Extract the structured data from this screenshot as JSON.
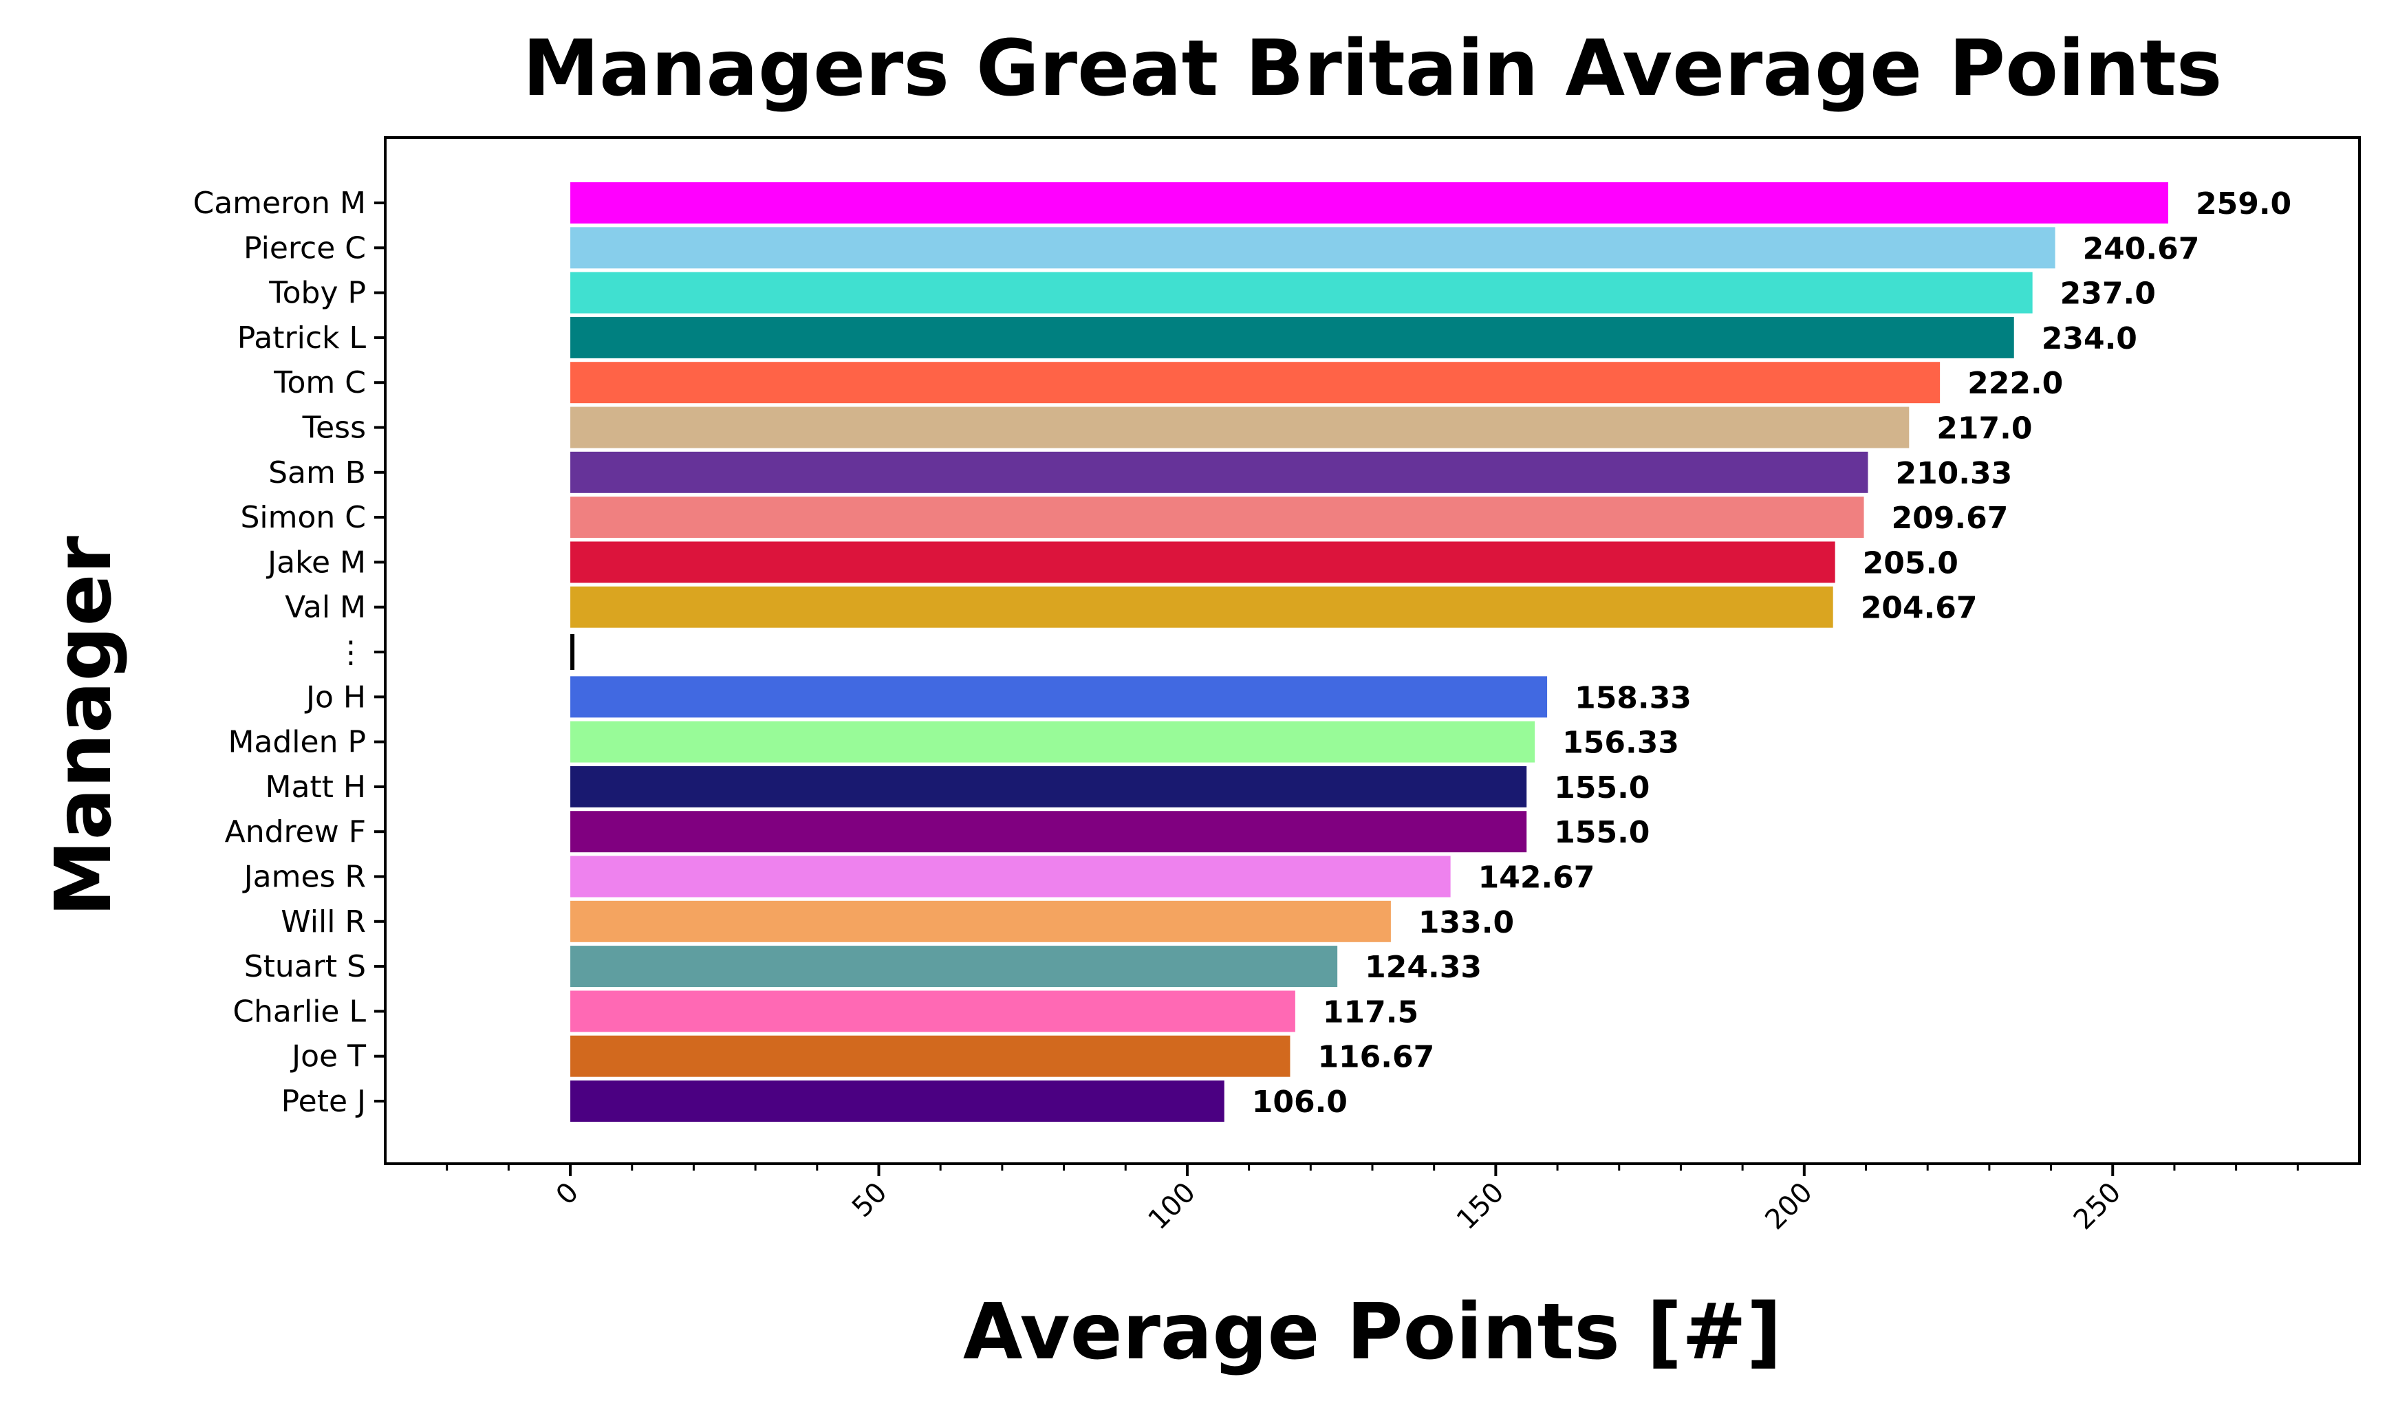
{
  "chart_data": {
    "type": "bar",
    "orientation": "horizontal",
    "title": "Managers Great Britain Average Points",
    "xlabel": "Average Points [#]",
    "ylabel": "Manager",
    "xlim": [
      -30,
      290
    ],
    "xticks": [
      0,
      50,
      100,
      150,
      200,
      250
    ],
    "grid": false,
    "legend": "none",
    "bars": [
      {
        "label": "Cameron M",
        "value": 259.0,
        "value_label": "259.0",
        "color": "#ff00ff"
      },
      {
        "label": "Pierce C",
        "value": 240.67,
        "value_label": "240.67",
        "color": "#87ceeb"
      },
      {
        "label": "Toby P",
        "value": 237.0,
        "value_label": "237.0",
        "color": "#40e0d0"
      },
      {
        "label": "Patrick L",
        "value": 234.0,
        "value_label": "234.0",
        "color": "#008080"
      },
      {
        "label": "Tom C",
        "value": 222.0,
        "value_label": "222.0",
        "color": "#ff6347"
      },
      {
        "label": "Tess",
        "value": 217.0,
        "value_label": "217.0",
        "color": "#d2b48c"
      },
      {
        "label": "Sam B",
        "value": 210.33,
        "value_label": "210.33",
        "color": "#663399"
      },
      {
        "label": "Simon C",
        "value": 209.67,
        "value_label": "209.67",
        "color": "#f08080"
      },
      {
        "label": "Jake M",
        "value": 205.0,
        "value_label": "205.0",
        "color": "#dc143c"
      },
      {
        "label": "Val M",
        "value": 204.67,
        "value_label": "204.67",
        "color": "#daa520"
      },
      {
        "label": "⋮",
        "value": 0.5,
        "value_label": "",
        "color": "#000000"
      },
      {
        "label": "Jo H",
        "value": 158.33,
        "value_label": "158.33",
        "color": "#4169e1"
      },
      {
        "label": "Madlen P",
        "value": 156.33,
        "value_label": "156.33",
        "color": "#98fb98"
      },
      {
        "label": "Matt H",
        "value": 155.0,
        "value_label": "155.0",
        "color": "#191970"
      },
      {
        "label": "Andrew F",
        "value": 155.0,
        "value_label": "155.0",
        "color": "#800080"
      },
      {
        "label": "James R",
        "value": 142.67,
        "value_label": "142.67",
        "color": "#ee82ee"
      },
      {
        "label": "Will R",
        "value": 133.0,
        "value_label": "133.0",
        "color": "#f4a460"
      },
      {
        "label": "Stuart S",
        "value": 124.33,
        "value_label": "124.33",
        "color": "#5f9ea0"
      },
      {
        "label": "Charlie L",
        "value": 117.5,
        "value_label": "117.5",
        "color": "#ff69b4"
      },
      {
        "label": "Joe T",
        "value": 116.67,
        "value_label": "116.67",
        "color": "#d2691e"
      },
      {
        "label": "Pete J",
        "value": 106.0,
        "value_label": "106.0",
        "color": "#4b0082"
      }
    ]
  }
}
